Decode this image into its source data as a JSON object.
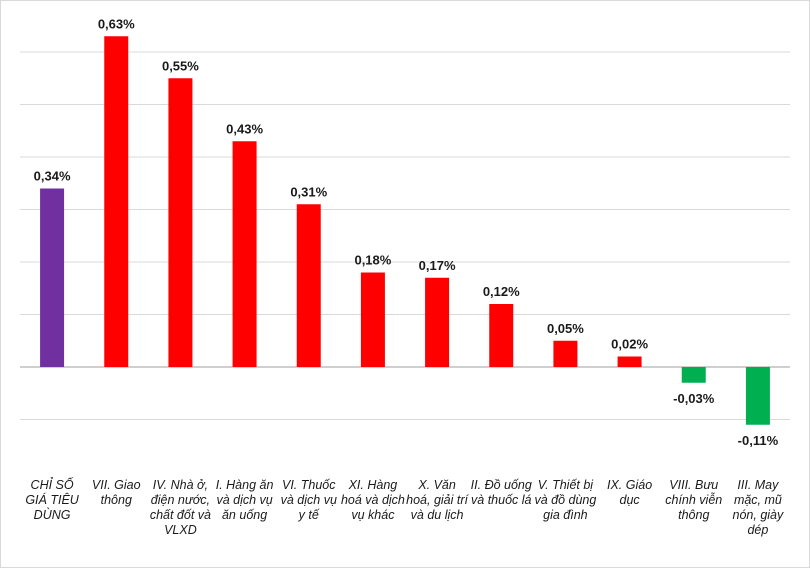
{
  "chart_data": {
    "type": "bar",
    "title": "",
    "xlabel": "",
    "ylabel": "",
    "ylim": [
      -0.15,
      0.7
    ],
    "grid": true,
    "categories": [
      "CHỈ SỐ GIÁ TIÊU DÙNG",
      "VII. Giao thông",
      "IV. Nhà ở, điện nước, chất đốt và VLXD",
      "I. Hàng ăn và dịch vụ ăn uống",
      "VI. Thuốc và dịch vụ y tế",
      "XI. Hàng hoá và dịch vụ khác",
      "X. Văn hoá, giải trí và du lịch",
      "II. Đồ uống và thuốc lá",
      "V. Thiết bị và đồ dùng gia đình",
      "IX. Giáo dục",
      "VIII. Bưu chính viễn thông",
      "III. May mặc, mũ nón, giày dép"
    ],
    "values": [
      0.34,
      0.63,
      0.55,
      0.43,
      0.31,
      0.18,
      0.17,
      0.12,
      0.05,
      0.02,
      -0.03,
      -0.11
    ],
    "data_labels": [
      "0,34%",
      "0,63%",
      "0,55%",
      "0,43%",
      "0,31%",
      "0,18%",
      "0,17%",
      "0,12%",
      "0,05%",
      "0,02%",
      "-0,03%",
      "-0,11%"
    ],
    "bar_colors": [
      "#7030a0",
      "#ff0000",
      "#ff0000",
      "#ff0000",
      "#ff0000",
      "#ff0000",
      "#ff0000",
      "#ff0000",
      "#ff0000",
      "#ff0000",
      "#00b050",
      "#00b050"
    ]
  }
}
